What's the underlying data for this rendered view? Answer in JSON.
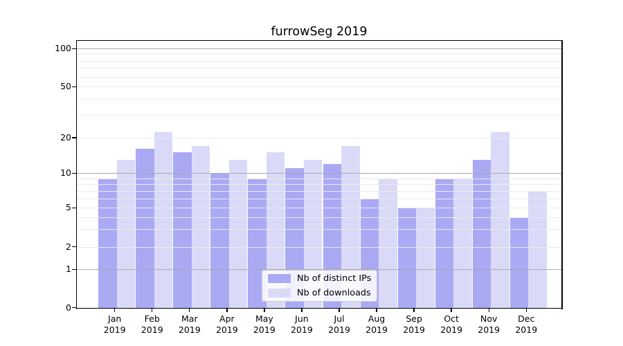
{
  "chart_data": {
    "type": "bar",
    "title": "furrowSeg 2019",
    "categories": [
      "Jan",
      "Feb",
      "Mar",
      "Apr",
      "May",
      "Jun",
      "Jul",
      "Aug",
      "Sep",
      "Oct",
      "Nov",
      "Dec"
    ],
    "category_year": "2019",
    "series": [
      {
        "name": "Nb of distinct IPs",
        "color": "#a9a9f4",
        "values": [
          9,
          16,
          15,
          10,
          9,
          11,
          12,
          6,
          5,
          9,
          13,
          4
        ]
      },
      {
        "name": "Nb of downloads",
        "color": "#dadaf8",
        "values": [
          13,
          22,
          17,
          13,
          15,
          13,
          17,
          9,
          5,
          9,
          22,
          7
        ]
      }
    ],
    "xlabel": "",
    "ylabel": "",
    "yscale": "log-like with 0 baseline",
    "yticks": [
      0,
      1,
      2,
      5,
      10,
      20,
      50,
      100
    ],
    "ylim": [
      0,
      116
    ],
    "grid": true,
    "legend_position": "lower center"
  },
  "colors": {
    "background": "#ffffff",
    "bar_dark": "#a9a9f4",
    "bar_light": "#dadaf8",
    "grid_major": "#ababab",
    "grid_minor": "#eaeaea",
    "axis": "#000000",
    "legend_border": "#cccccc"
  }
}
